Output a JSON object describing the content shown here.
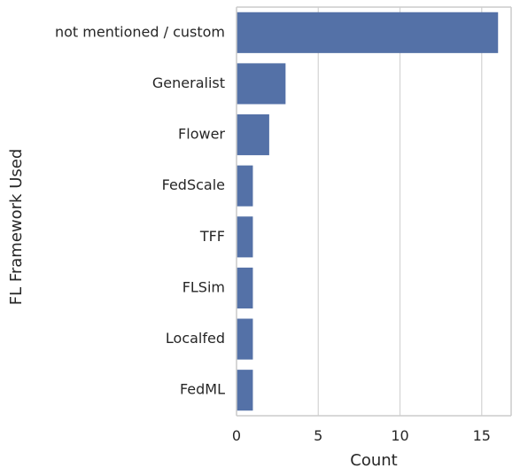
{
  "chart_data": {
    "type": "bar",
    "orientation": "horizontal",
    "categories": [
      "not mentioned / custom",
      "Generalist",
      "Flower",
      "FedScale",
      "TFF",
      "FLSim",
      "Localfed",
      "FedML"
    ],
    "values": [
      16,
      3,
      2,
      1,
      1,
      1,
      1,
      1
    ],
    "xlabel": "Count",
    "ylabel": "FL Framework Used",
    "xlim": [
      0,
      16.8
    ],
    "xticks": [
      0,
      5,
      10,
      15
    ],
    "grid": "vertical",
    "colors": {
      "bar": "#5471a7",
      "grid": "#d3d3d3",
      "axis": "#cccccc",
      "text": "#262626"
    }
  }
}
